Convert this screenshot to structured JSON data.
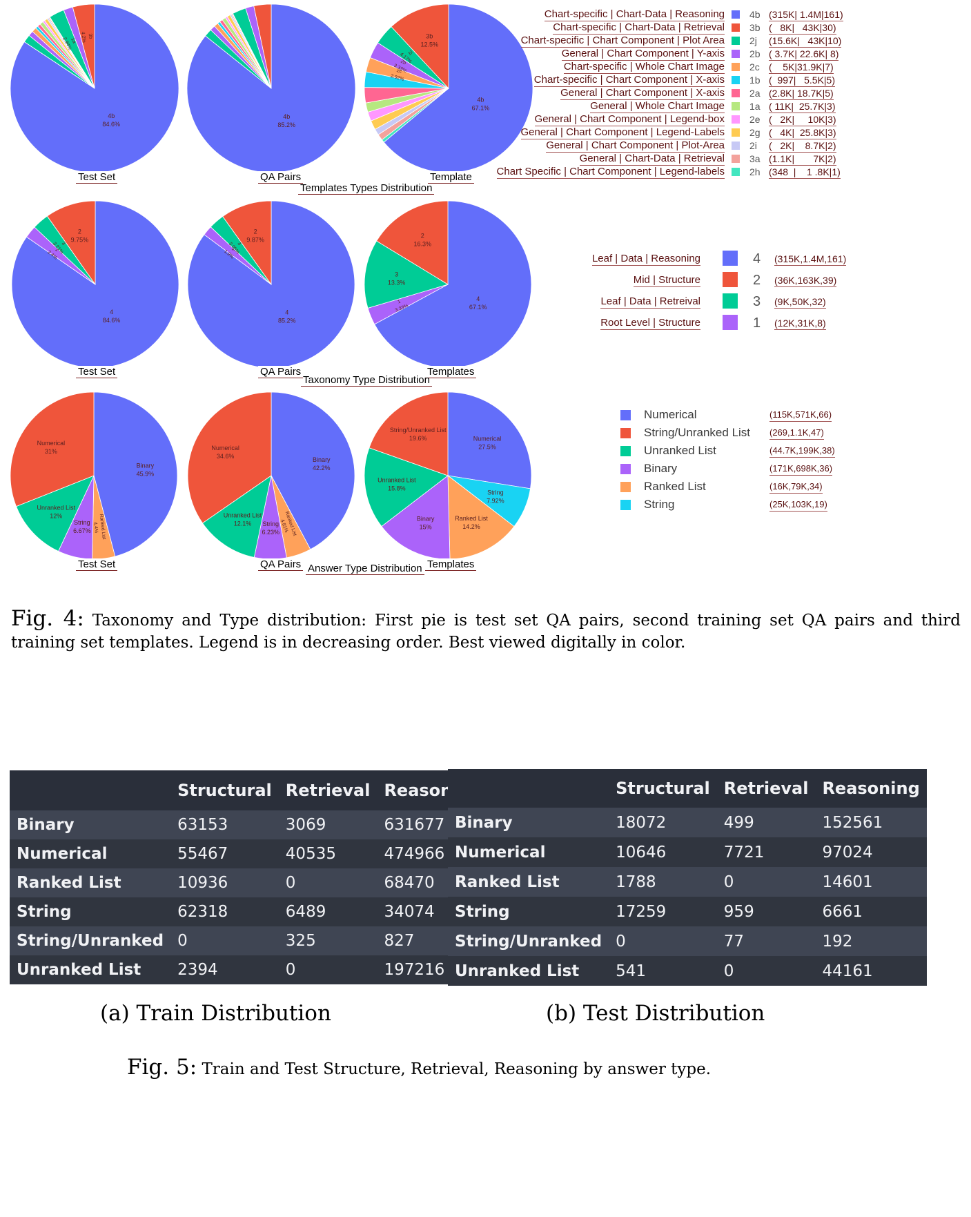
{
  "colors": {
    "blue": "#636efa",
    "red": "#ef553b",
    "green": "#00cc96",
    "purple": "#ab63fa",
    "orange": "#ffa15a",
    "cyan": "#19d3f3",
    "pink": "#ff6692",
    "lime": "#b6e880",
    "magenta": "#ff97ff",
    "yellow": "#fecb52",
    "lavender": "#c7c9f5",
    "salmon": "#f3a29c",
    "mint": "#42e6c0"
  },
  "section_titles": {
    "row1": "Templates Types Distribution",
    "row2": "Taxonomy Type Distribution",
    "row3": "Answer Type Distribution"
  },
  "pie_captions": {
    "row1": [
      "Test Set",
      "QA Pairs",
      "Template"
    ],
    "row2": [
      "Test Set",
      "QA Pairs",
      "Templates"
    ],
    "row3": [
      "Test Set",
      "QA Pairs",
      "Templates"
    ]
  },
  "legend1": [
    {
      "desc": "Chart-specific | Chart-Data | Reasoning",
      "code": "4b",
      "stats": "(315K| 1.4M|161)",
      "color": "#636efa"
    },
    {
      "desc": "Chart-specific | Chart-Data | Retrieval",
      "code": "3b",
      "stats": "(   8K|   43K|30)",
      "color": "#ef553b"
    },
    {
      "desc": "Chart-specific | Chart Component | Plot Area",
      "code": "2j",
      "stats": "(15.6K|   43K|10)",
      "color": "#00cc96"
    },
    {
      "desc": "General | Chart Component | Y-axis",
      "code": "2b",
      "stats": "( 3.7K| 22.6K| 8)",
      "color": "#ab63fa"
    },
    {
      "desc": "Chart-specific | Whole Chart Image",
      "code": "2c",
      "stats": "(    5K|31.9K|7)",
      "color": "#ffa15a"
    },
    {
      "desc": "Chart-specific | Chart Component | X-axis",
      "code": "1b",
      "stats": "(  997|   5.5K|5)",
      "color": "#19d3f3"
    },
    {
      "desc": "General | Chart Component | X-axis",
      "code": "2a",
      "stats": "(2.8K| 18.7K|5)",
      "color": "#ff6692"
    },
    {
      "desc": "General | Whole Chart Image",
      "code": "1a",
      "stats": "( 11K|  25.7K|3)",
      "color": "#b6e880"
    },
    {
      "desc": "General | Chart Component | Legend-box",
      "code": "2e",
      "stats": "(   2K|     10K|3)",
      "color": "#ff97ff"
    },
    {
      "desc": "General | Chart Component | Legend-Labels",
      "code": "2g",
      "stats": "(   4K|  25.8K|3)",
      "color": "#fecb52"
    },
    {
      "desc": "General | Chart Component | Plot-Area",
      "code": "2i",
      "stats": "(   2K|    8.7K|2)",
      "color": "#c7c9f5"
    },
    {
      "desc": "General | Chart-Data | Retrieval",
      "code": "3a",
      "stats": "(1.1K|       7K|2)",
      "color": "#f3a29c"
    },
    {
      "desc": "Chart Specific | Chart Component | Legend-labels",
      "code": "2h",
      "stats": "(348  |    1 .8K|1)",
      "color": "#42e6c0"
    }
  ],
  "legend2": [
    {
      "desc": "Leaf | Data | Reasoning",
      "code": "4",
      "stats": "(315K,1.4M,161)",
      "color": "#636efa"
    },
    {
      "desc": "Mid | Structure",
      "code": "2",
      "stats": "(36K,163K,39)",
      "color": "#ef553b"
    },
    {
      "desc": "Leaf | Data | Retreival",
      "code": "3",
      "stats": "(9K,50K,32)",
      "color": "#00cc96"
    },
    {
      "desc": "Root Level | Structure",
      "code": "1",
      "stats": "(12K,31K,8)",
      "color": "#ab63fa"
    }
  ],
  "legend3": [
    {
      "label": "Numerical",
      "stats": "(115K,571K,66)",
      "color": "#636efa"
    },
    {
      "label": "String/Unranked List",
      "stats": "(269,1.1K,47)",
      "color": "#ef553b"
    },
    {
      "label": "Unranked List",
      "stats": "(44.7K,199K,38)",
      "color": "#00cc96"
    },
    {
      "label": "Binary",
      "stats": "(171K,698K,36)",
      "color": "#ab63fa"
    },
    {
      "label": "Ranked List",
      "stats": "(16K,79K,34)",
      "color": "#ffa15a"
    },
    {
      "label": "String",
      "stats": "(25K,103K,19)",
      "color": "#19d3f3"
    }
  ],
  "chart_data": [
    {
      "type": "pie",
      "title": "Templates Types Distribution",
      "subplot": "Test Set",
      "slices": [
        {
          "label": "4b",
          "value": 84.6,
          "color": "#636efa",
          "text": "84.6%"
        },
        {
          "label": "2j",
          "value": 1.5,
          "color": "#00cc96"
        },
        {
          "label": "2b",
          "value": 1.0,
          "color": "#ab63fa"
        },
        {
          "label": "2c",
          "value": 0.9,
          "color": "#ffa15a"
        },
        {
          "label": "1b",
          "value": 0.5,
          "color": "#19d3f3"
        },
        {
          "label": "2a",
          "value": 0.6,
          "color": "#ff6692"
        },
        {
          "label": "1a",
          "value": 0.7,
          "color": "#b6e880"
        },
        {
          "label": "2e",
          "value": 0.4,
          "color": "#ff97ff"
        },
        {
          "label": "2g",
          "value": 0.6,
          "color": "#fecb52"
        },
        {
          "label": "2i",
          "value": 0.3,
          "color": "#c7c9f5"
        },
        {
          "label": "3a",
          "value": 0.2,
          "color": "#f3a29c"
        },
        {
          "label": "2h",
          "value": 0.1,
          "color": "#42e6c0"
        },
        {
          "label": "1a",
          "value": 2.94,
          "color": "#00cc96",
          "text": "2.94%"
        },
        {
          "label": "1f",
          "value": 1.8,
          "color": "#ab63fa"
        },
        {
          "label": "3b",
          "value": 4.2,
          "color": "#ef553b",
          "text": "4.2%"
        }
      ]
    },
    {
      "type": "pie",
      "title": "Templates Types Distribution",
      "subplot": "QA Pairs",
      "slices": [
        {
          "label": "4b",
          "value": 85.2,
          "color": "#636efa",
          "text": "85.2%"
        },
        {
          "label": "2j",
          "value": 1.5,
          "color": "#00cc96"
        },
        {
          "label": "2b",
          "value": 1.0,
          "color": "#ab63fa"
        },
        {
          "label": "2c",
          "value": 0.8,
          "color": "#ffa15a"
        },
        {
          "label": "1b",
          "value": 0.5,
          "color": "#19d3f3"
        },
        {
          "label": "2a",
          "value": 0.6,
          "color": "#ff6692"
        },
        {
          "label": "1a",
          "value": 0.7,
          "color": "#b6e880"
        },
        {
          "label": "2e",
          "value": 0.4,
          "color": "#ff97ff"
        },
        {
          "label": "2g",
          "value": 0.6,
          "color": "#fecb52"
        },
        {
          "label": "2i",
          "value": 0.3,
          "color": "#c7c9f5"
        },
        {
          "label": "3a",
          "value": 0.2,
          "color": "#f3a29c"
        },
        {
          "label": "2h",
          "value": 0.1,
          "color": "#42e6c0"
        },
        {
          "label": "3b",
          "value": 2.6,
          "color": "#00cc96"
        },
        {
          "label": "1a",
          "value": 1.6,
          "color": "#ab63fa"
        },
        {
          "label": "2j",
          "value": 3.3,
          "color": "#ef553b"
        }
      ]
    },
    {
      "type": "pie",
      "title": "Templates Types Distribution",
      "subplot": "Template",
      "slices": [
        {
          "label": "4b",
          "value": 67.1,
          "color": "#636efa",
          "text": "67.1%"
        },
        {
          "label": "2j",
          "value": 0.62,
          "color": "#42e6c0"
        },
        {
          "label": "2i",
          "value": 1.24,
          "color": "#f3a29c"
        },
        {
          "label": "2h",
          "value": 1.24,
          "color": "#c7c9f5"
        },
        {
          "label": "2g",
          "value": 1.86,
          "color": "#fecb52"
        },
        {
          "label": "2e",
          "value": 1.86,
          "color": "#ff97ff"
        },
        {
          "label": "1a",
          "value": 1.86,
          "color": "#b6e880"
        },
        {
          "label": "2a",
          "value": 3.11,
          "color": "#ff6692"
        },
        {
          "label": "1b",
          "value": 3.11,
          "color": "#19d3f3"
        },
        {
          "label": "2c",
          "value": 2.92,
          "color": "#ffa15a",
          "text": "2.92%"
        },
        {
          "label": "2b",
          "value": 3.33,
          "color": "#ab63fa",
          "text": "3.33%"
        },
        {
          "label": "2j",
          "value": 4.17,
          "color": "#00cc96",
          "text": "4.17%"
        },
        {
          "label": "3b",
          "value": 12.5,
          "color": "#ef553b",
          "text": "12.5%"
        }
      ]
    },
    {
      "type": "pie",
      "title": "Taxonomy Type Distribution",
      "subplot": "Test Set",
      "slices": [
        {
          "label": "4",
          "value": 84.6,
          "color": "#636efa",
          "text": "84.6%"
        },
        {
          "label": "1",
          "value": 2.4,
          "color": "#ab63fa",
          "text": "2.4%"
        },
        {
          "label": "3",
          "value": 3.21,
          "color": "#00cc96",
          "text": "3.21%"
        },
        {
          "label": "2",
          "value": 9.75,
          "color": "#ef553b",
          "text": "9.75%"
        }
      ]
    },
    {
      "type": "pie",
      "title": "Taxonomy Type Distribution",
      "subplot": "QA Pairs",
      "slices": [
        {
          "label": "4",
          "value": 85.2,
          "color": "#636efa",
          "text": "85.2%"
        },
        {
          "label": "1",
          "value": 1.9,
          "color": "#ab63fa",
          "text": "1.9%"
        },
        {
          "label": "3",
          "value": 3.05,
          "color": "#00cc96",
          "text": "3.05%"
        },
        {
          "label": "2",
          "value": 9.87,
          "color": "#ef553b",
          "text": "9.87%"
        }
      ]
    },
    {
      "type": "pie",
      "title": "Taxonomy Type Distribution",
      "subplot": "Templates",
      "slices": [
        {
          "label": "4",
          "value": 67.1,
          "color": "#636efa",
          "text": "67.1%"
        },
        {
          "label": "1",
          "value": 3.33,
          "color": "#ab63fa",
          "text": "3.33%"
        },
        {
          "label": "3",
          "value": 13.3,
          "color": "#00cc96",
          "text": "13.3%"
        },
        {
          "label": "2",
          "value": 16.3,
          "color": "#ef553b",
          "text": "16.3%"
        }
      ]
    },
    {
      "type": "pie",
      "title": "Answer Type Distribution",
      "subplot": "Test Set",
      "slices": [
        {
          "label": "Binary",
          "value": 45.9,
          "color": "#636efa",
          "text": "45.9%"
        },
        {
          "label": "Ranked List",
          "value": 4.4,
          "color": "#ffa15a",
          "text": "4.4%"
        },
        {
          "label": "String",
          "value": 6.67,
          "color": "#ab63fa",
          "text": "6.67%"
        },
        {
          "label": "Unranked List",
          "value": 12,
          "color": "#00cc96",
          "text": "12%"
        },
        {
          "label": "Numerical",
          "value": 31,
          "color": "#ef553b",
          "text": "31%"
        }
      ]
    },
    {
      "type": "pie",
      "title": "Answer Type Distribution",
      "subplot": "QA Pairs",
      "slices": [
        {
          "label": "Binary",
          "value": 42.2,
          "color": "#636efa",
          "text": "42.2%"
        },
        {
          "label": "Ranked List",
          "value": 4.81,
          "color": "#ffa15a",
          "text": "4.81%"
        },
        {
          "label": "String",
          "value": 6.23,
          "color": "#ab63fa",
          "text": "6.23%"
        },
        {
          "label": "Unranked List",
          "value": 12.1,
          "color": "#00cc96",
          "text": "12.1%"
        },
        {
          "label": "Numerical",
          "value": 34.6,
          "color": "#ef553b",
          "text": "34.6%"
        }
      ]
    },
    {
      "type": "pie",
      "title": "Answer Type Distribution",
      "subplot": "Templates",
      "slices": [
        {
          "label": "Numerical",
          "value": 27.5,
          "color": "#636efa",
          "text": "27.5%"
        },
        {
          "label": "String",
          "value": 7.92,
          "color": "#19d3f3",
          "text": "7.92%"
        },
        {
          "label": "Ranked List",
          "value": 14.2,
          "color": "#ffa15a",
          "text": "14.2%"
        },
        {
          "label": "Binary",
          "value": 15,
          "color": "#ab63fa",
          "text": "15%"
        },
        {
          "label": "Unranked List",
          "value": 15.8,
          "color": "#00cc96",
          "text": "15.8%"
        },
        {
          "label": "String/Unranked List",
          "value": 19.6,
          "color": "#ef553b",
          "text": "19.6%"
        }
      ]
    }
  ],
  "fig4": {
    "label": "Fig. 4:",
    "text": "Taxonomy and Type distribution: First pie is test set QA pairs, second training set QA pairs and third training set templates. Legend is in decreasing order. Best viewed digitally in color."
  },
  "tables": [
    {
      "headers": [
        "",
        "Structural",
        "Retrieval",
        "Reasoning"
      ],
      "rows": [
        [
          "Binary",
          "63153",
          "3069",
          "631677"
        ],
        [
          "Numerical",
          "55467",
          "40535",
          "474966"
        ],
        [
          "Ranked List",
          "10936",
          "0",
          "68470"
        ],
        [
          "String",
          "62318",
          "6489",
          "34074"
        ],
        [
          "String/Unranked",
          "0",
          "325",
          "827"
        ],
        [
          "Unranked List",
          "2394",
          "0",
          "197216"
        ]
      ],
      "caption": "(a) Train Distribution"
    },
    {
      "headers": [
        "",
        "Structural",
        "Retrieval",
        "Reasoning"
      ],
      "rows": [
        [
          "Binary",
          "18072",
          "499",
          "152561"
        ],
        [
          "Numerical",
          "10646",
          "7721",
          "97024"
        ],
        [
          "Ranked List",
          "1788",
          "0",
          "14601"
        ],
        [
          "String",
          "17259",
          "959",
          "6661"
        ],
        [
          "String/Unranked",
          "0",
          "77",
          "192"
        ],
        [
          "Unranked List",
          "541",
          "0",
          "44161"
        ]
      ],
      "caption": "(b) Test Distribution"
    }
  ],
  "fig5": {
    "label": "Fig. 5:",
    "text": "Train and Test Structure, Retrieval, Reasoning by answer type."
  }
}
